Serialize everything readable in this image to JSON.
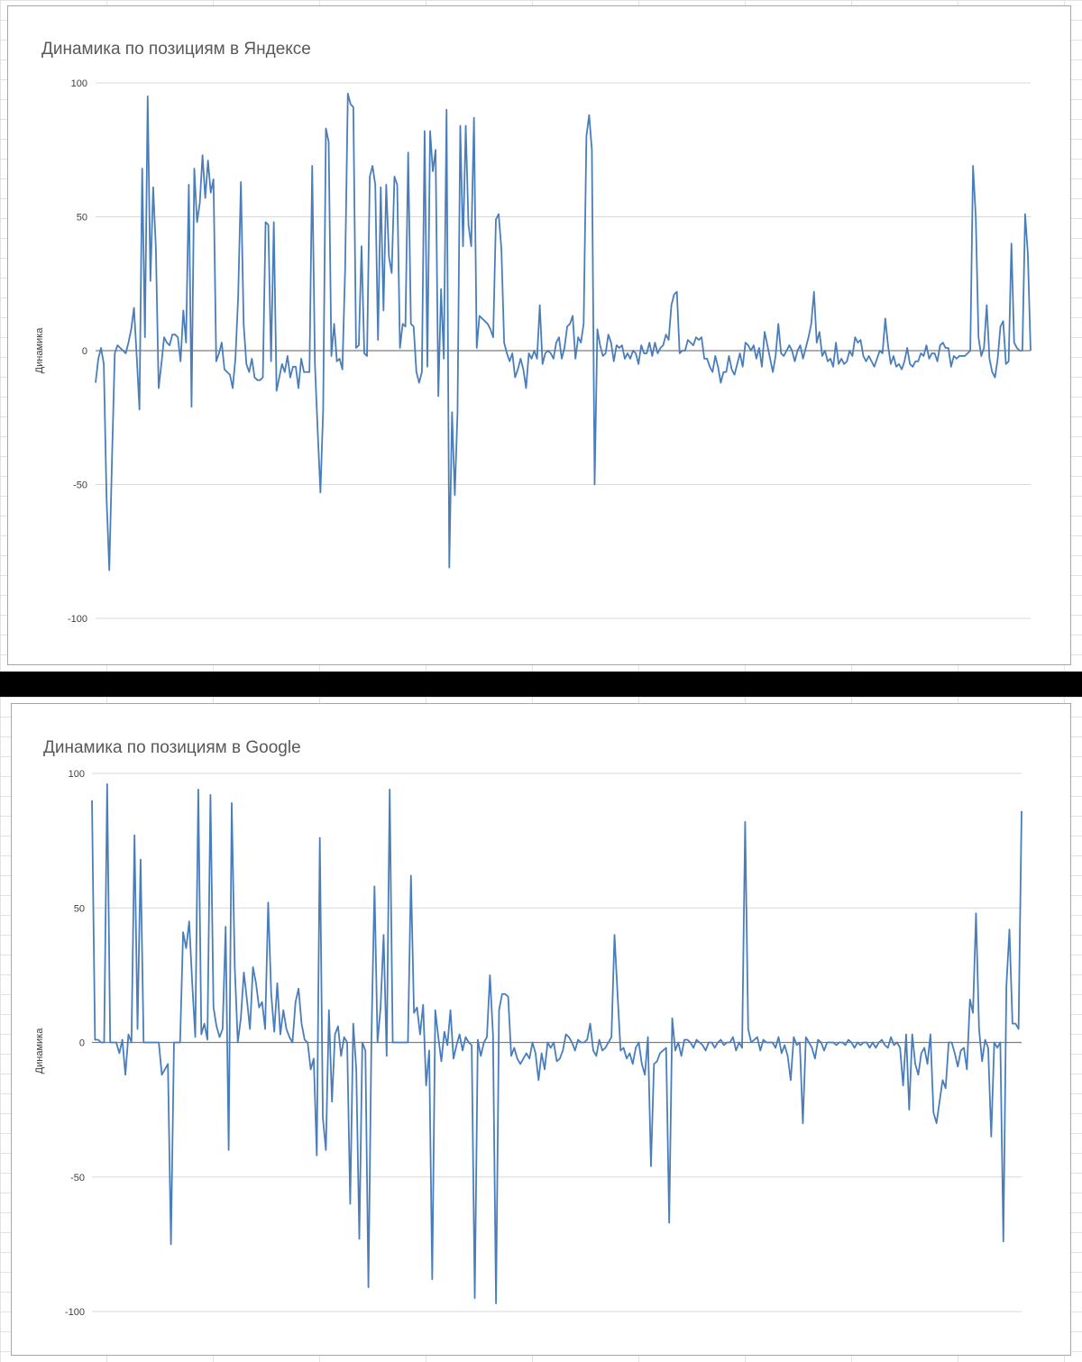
{
  "colors": {
    "series_line": "#4a7ebb",
    "gridline": "#d9d9d9",
    "zero_axis": "#7f7f7f",
    "divider": "#000000"
  },
  "chart_data": [
    {
      "type": "line",
      "title": "Динамика по позициям в Яндексе",
      "xlabel": "",
      "ylabel": "Динамика",
      "ylim": [
        -100,
        100
      ],
      "yticks": [
        "100",
        "50",
        "0",
        "-50",
        "-100"
      ],
      "grid": true,
      "legend": "none",
      "values": [
        -12,
        -3,
        1,
        -5,
        -55,
        -82,
        -40,
        -1,
        2,
        1,
        0,
        -1,
        3,
        8,
        16,
        -2,
        -22,
        68,
        5,
        95,
        26,
        61,
        38,
        -14,
        -5,
        5,
        3,
        2,
        6,
        6,
        5,
        -4,
        15,
        3,
        62,
        -21,
        68,
        48,
        55,
        73,
        57,
        71,
        59,
        64,
        -4,
        -1,
        3,
        -7,
        -8,
        -9,
        -14,
        -3,
        20,
        63,
        10,
        -5,
        -8,
        -3,
        -10,
        -11,
        -11,
        -10,
        48,
        47,
        -4,
        48,
        -15,
        -10,
        -5,
        -8,
        -2,
        -10,
        -6,
        -6,
        -14,
        -3,
        -8,
        -8,
        -8,
        69,
        -5,
        -30,
        -53,
        -22,
        83,
        78,
        -2,
        10,
        -4,
        -3,
        -7,
        30,
        96,
        92,
        91,
        1,
        2,
        39,
        -1,
        -2,
        65,
        69,
        62,
        4,
        61,
        15,
        62,
        35,
        29,
        65,
        62,
        1,
        10,
        9,
        74,
        10,
        9,
        -8,
        -12,
        -8,
        82,
        -6,
        82,
        67,
        75,
        -17,
        23,
        -3,
        90,
        -81,
        -23,
        -54,
        -23,
        84,
        39,
        84,
        47,
        39,
        87,
        1,
        13,
        12,
        11,
        10,
        8,
        5,
        49,
        51,
        38,
        3,
        -1,
        -4,
        -1,
        -10,
        -7,
        -3,
        -7,
        -14,
        -1,
        -3,
        0,
        -3,
        17,
        -5,
        -1,
        0,
        -1,
        -3,
        3,
        5,
        -3,
        1,
        9,
        10,
        13,
        -3,
        5,
        3,
        10,
        80,
        88,
        75,
        -50,
        8,
        2,
        -2,
        -1,
        6,
        3,
        -4,
        2,
        1,
        2,
        -3,
        -1,
        -3,
        0,
        -1,
        -5,
        2,
        -1,
        -1,
        3,
        -2,
        3,
        -1,
        1,
        2,
        6,
        4,
        17,
        21,
        22,
        -1,
        0,
        0,
        4,
        3,
        2,
        5,
        4,
        5,
        -3,
        -3,
        -6,
        -8,
        -2,
        -6,
        -12,
        -8,
        -8,
        -2,
        -7,
        -9,
        -5,
        -1,
        -6,
        3,
        2,
        0,
        2,
        -3,
        1,
        -6,
        7,
        2,
        -3,
        -8,
        -2,
        10,
        -1,
        -2,
        0,
        2,
        0,
        -4,
        0,
        2,
        -3,
        1,
        5,
        10,
        22,
        3,
        7,
        -2,
        0,
        -4,
        -3,
        -6,
        3,
        -5,
        -3,
        -5,
        -4,
        0,
        -2,
        5,
        3,
        4,
        -2,
        -4,
        -2,
        -4,
        -6,
        -3,
        0,
        -1,
        12,
        2,
        -5,
        -2,
        -6,
        -5,
        -7,
        -4,
        1,
        -5,
        -6,
        -4,
        -4,
        -1,
        -2,
        2,
        -3,
        -1,
        -1,
        -4,
        2,
        3,
        1,
        1,
        -6,
        -2,
        -3,
        -2,
        -2,
        -2,
        -1,
        0,
        69,
        50,
        5,
        -2,
        1,
        17,
        -3,
        -8,
        -10,
        -3,
        9,
        11,
        -5,
        -4,
        40,
        3,
        1,
        0,
        0,
        51,
        36,
        0
      ],
      "series": [
        {
          "values_ref": "values"
        }
      ]
    },
    {
      "type": "line",
      "title": "Динамика по позициям в Google",
      "xlabel": "",
      "ylabel": "Динамика",
      "ylim": [
        -100,
        100
      ],
      "yticks": [
        "100",
        "50",
        "0",
        "-50",
        "-100"
      ],
      "grid": true,
      "legend": "none",
      "values": [
        90,
        1,
        1,
        0,
        0,
        96,
        0,
        0,
        0,
        -4,
        1,
        -12,
        3,
        0,
        77,
        5,
        68,
        0,
        0,
        0,
        0,
        0,
        0,
        -12,
        -10,
        -8,
        -75,
        0,
        0,
        0,
        41,
        35,
        45,
        22,
        2,
        94,
        3,
        7,
        1,
        92,
        13,
        6,
        2,
        5,
        43,
        -40,
        89,
        28,
        0,
        9,
        26,
        16,
        5,
        28,
        22,
        13,
        15,
        5,
        52,
        18,
        4,
        22,
        3,
        12,
        5,
        2,
        0,
        15,
        20,
        7,
        1,
        0,
        -10,
        -6,
        -42,
        76,
        -28,
        -40,
        12,
        -22,
        3,
        6,
        -5,
        2,
        0,
        -60,
        7,
        -10,
        -73,
        0,
        -3,
        -91,
        2,
        58,
        0,
        13,
        40,
        -5,
        94,
        0,
        0,
        0,
        0,
        0,
        0,
        62,
        11,
        13,
        3,
        14,
        -16,
        -3,
        -88,
        12,
        2,
        -7,
        4,
        -1,
        12,
        -6,
        -1,
        3,
        -3,
        2,
        0,
        -1,
        -95,
        1,
        -5,
        0,
        2,
        25,
        3,
        -97,
        12,
        18,
        18,
        17,
        -5,
        -2,
        -6,
        -8,
        -6,
        -4,
        -6,
        0,
        -4,
        -14,
        -4,
        -10,
        0,
        -2,
        0,
        -7,
        -6,
        -3,
        3,
        2,
        0,
        -3,
        1,
        0,
        0,
        1,
        7,
        -3,
        -5,
        1,
        -3,
        -2,
        0,
        2,
        40,
        18,
        -3,
        -2,
        -6,
        -4,
        -8,
        -2,
        0,
        -8,
        -12,
        2,
        -46,
        -8,
        -7,
        -4,
        -3,
        -2,
        -67,
        9,
        -3,
        0,
        -5,
        1,
        1,
        0,
        -2,
        1,
        0,
        -1,
        -3,
        0,
        0,
        -2,
        0,
        1,
        -1,
        0,
        0,
        2,
        -3,
        0,
        -2,
        82,
        5,
        0,
        1,
        2,
        -3,
        1,
        0,
        0,
        0,
        -2,
        2,
        -4,
        -1,
        -5,
        -14,
        2,
        -1,
        0,
        -30,
        2,
        0,
        -2,
        -6,
        1,
        0,
        -3,
        0,
        0,
        0,
        -1,
        0,
        0,
        -1,
        1,
        0,
        -2,
        0,
        -1,
        0,
        0,
        -2,
        0,
        -2,
        0,
        1,
        -1,
        -2,
        2,
        -1,
        0,
        -2,
        -16,
        3,
        -25,
        3,
        -8,
        -12,
        -4,
        -2,
        -8,
        3,
        -26,
        -30,
        -22,
        -14,
        -17,
        0,
        0,
        -4,
        -9,
        -3,
        -2,
        -10,
        16,
        11,
        48,
        5,
        -7,
        1,
        -2,
        -35,
        0,
        -2,
        0,
        -74,
        21,
        42,
        7,
        7,
        5,
        86
      ],
      "series": [
        {
          "values_ref": "values"
        }
      ]
    }
  ]
}
